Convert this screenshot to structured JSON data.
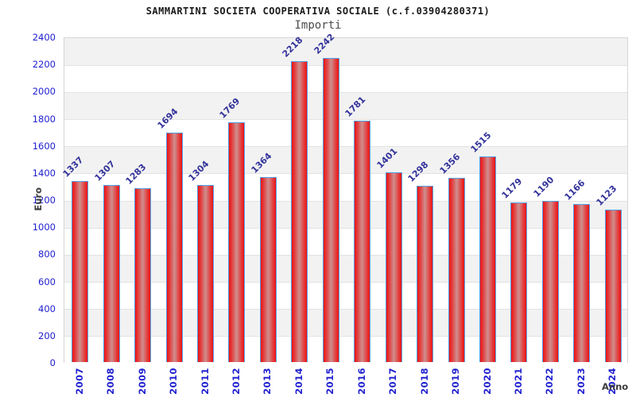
{
  "title": "SAMMARTINI SOCIETA COOPERATIVA SOCIALE (c.f.03904280371)",
  "subtitle": "Importi",
  "chart_data": {
    "type": "bar",
    "categories": [
      "2007",
      "2008",
      "2009",
      "2010",
      "2011",
      "2012",
      "2013",
      "2014",
      "2015",
      "2016",
      "2017",
      "2018",
      "2019",
      "2020",
      "2021",
      "2022",
      "2023",
      "2024"
    ],
    "values": [
      1337,
      1307,
      1283,
      1694,
      1304,
      1769,
      1364,
      2218,
      2242,
      1781,
      1401,
      1298,
      1356,
      1515,
      1179,
      1190,
      1166,
      1123
    ],
    "title": "SAMMARTINI SOCIETA COOPERATIVA SOCIALE (c.f.03904280371)",
    "subtitle": "Importi",
    "xlabel": "Anno",
    "ylabel": "Euro",
    "ylim": [
      0,
      2400
    ],
    "ytick_step": 200,
    "grid": "horizontal",
    "legend": "none",
    "value_labels": "above bars, rotated 45deg"
  },
  "colors": {
    "bar_fill_edge": "#ee1212",
    "bar_fill_center": "#cf8f8f",
    "bar_border": "#52a0e8",
    "axis_tick_label": "#2020d0",
    "value_label": "#32329b",
    "band_gray": "#f2f2f2",
    "band_white": "#ffffff",
    "gridline": "#e2e2e2",
    "plot_border": "#d6d6d6",
    "title_text": "#1a1a1a",
    "subtitle_text": "#4d4d4d",
    "axis_title_text": "#3d3d3d"
  }
}
